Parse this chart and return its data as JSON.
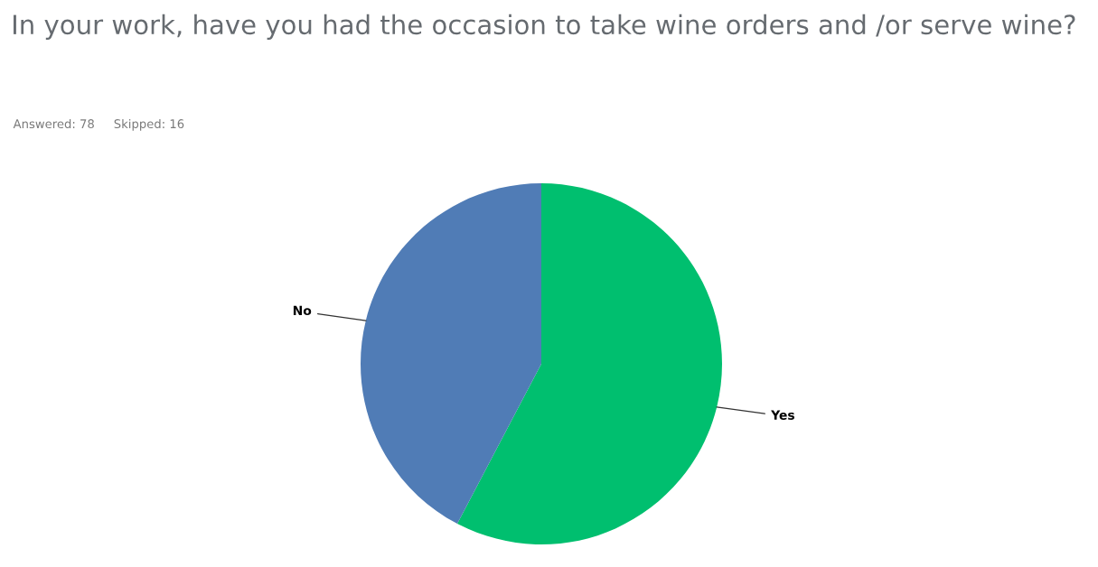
{
  "chart_data": {
    "type": "pie",
    "title": "In your work, have you had the occasion to take wine orders and /or serve wine?",
    "subtitle": "Answered: 78     Skipped: 16",
    "categories": [
      "Yes",
      "No"
    ],
    "values": [
      57.7,
      42.3
    ],
    "colors": [
      "#00bf6f",
      "#507cb6"
    ],
    "legend": false
  }
}
